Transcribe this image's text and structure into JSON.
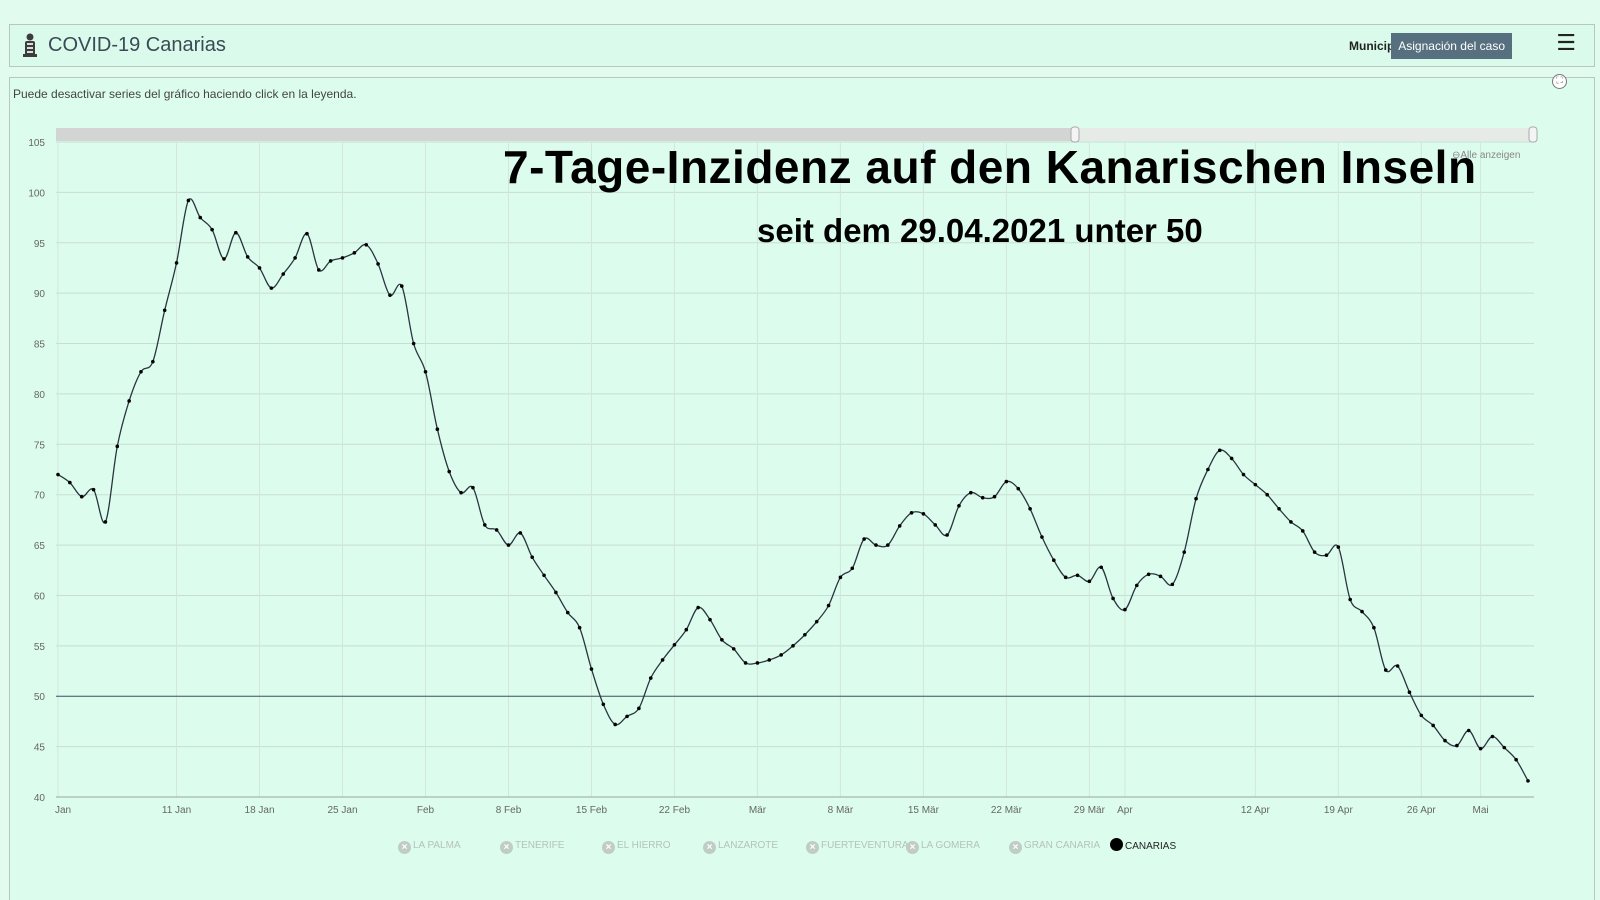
{
  "header": {
    "app_title": "COVID-19 Canarias",
    "municipio_label": "Municipio",
    "asignacion_label": "Asignación del caso",
    "menu_icon": "☰"
  },
  "hint": "Puede desactivar series del gráfico haciendo click en la leyenda.",
  "reset_zoom": "Alle anzeigen",
  "chart_data": {
    "type": "line",
    "title": "7-Tage-Inzidenz auf den Kanarischen Inseln",
    "subtitle": "seit dem 29.04.2021 unter 50",
    "ylim": [
      40,
      105
    ],
    "yticks": [
      40,
      45,
      50,
      55,
      60,
      65,
      70,
      75,
      80,
      85,
      90,
      95,
      100,
      105
    ],
    "reference_line": 50,
    "xticks": [
      {
        "label": "Jan",
        "day": 1
      },
      {
        "label": "11 Jan",
        "day": 11
      },
      {
        "label": "18 Jan",
        "day": 18
      },
      {
        "label": "25 Jan",
        "day": 25
      },
      {
        "label": "Feb",
        "day": 32
      },
      {
        "label": "8 Feb",
        "day": 39
      },
      {
        "label": "15 Feb",
        "day": 46
      },
      {
        "label": "22 Feb",
        "day": 53
      },
      {
        "label": "Mär",
        "day": 60
      },
      {
        "label": "8 Mär",
        "day": 67
      },
      {
        "label": "15 Mär",
        "day": 74
      },
      {
        "label": "22 Mär",
        "day": 81
      },
      {
        "label": "29 Mär",
        "day": 88
      },
      {
        "label": "Apr",
        "day": 91
      },
      {
        "label": "12 Apr",
        "day": 102
      },
      {
        "label": "19 Apr",
        "day": 109
      },
      {
        "label": "26 Apr",
        "day": 116
      },
      {
        "label": "Mai",
        "day": 121
      }
    ],
    "series": [
      {
        "name": "CANARIAS",
        "color": "#000000",
        "start_day": 1,
        "values": [
          72.0,
          71.2,
          69.8,
          70.5,
          67.3,
          74.8,
          79.3,
          82.2,
          83.2,
          88.3,
          93.0,
          99.2,
          97.5,
          96.3,
          93.4,
          96.0,
          93.6,
          92.5,
          90.5,
          91.9,
          93.5,
          95.9,
          92.3,
          93.2,
          93.5,
          94.0,
          94.8,
          92.9,
          89.8,
          90.7,
          85.0,
          82.2,
          76.5,
          72.3,
          70.2,
          70.7,
          67.0,
          66.5,
          65.0,
          66.2,
          63.8,
          62.0,
          60.3,
          58.3,
          56.8,
          52.7,
          49.2,
          47.2,
          48.0,
          48.8,
          51.8,
          53.6,
          55.1,
          56.6,
          58.8,
          57.6,
          55.6,
          54.7,
          53.3,
          53.3,
          53.6,
          54.1,
          55.0,
          56.1,
          57.4,
          59.0,
          61.8,
          62.7,
          65.6,
          65.0,
          65.0,
          66.9,
          68.2,
          68.1,
          67.0,
          66.0,
          68.9,
          70.2,
          69.7,
          69.8,
          71.3,
          70.6,
          68.6,
          65.8,
          63.5,
          61.8,
          62.0,
          61.4,
          62.8,
          59.7,
          58.6,
          61.0,
          62.1,
          61.9,
          61.1,
          64.3,
          69.6,
          72.5,
          74.4,
          73.6,
          72.0,
          71.0,
          70.0,
          68.6,
          67.3,
          66.4,
          64.3,
          64.0,
          64.8,
          59.6,
          58.4,
          56.8,
          52.6,
          53.0,
          50.4,
          48.1,
          47.1,
          45.6,
          45.1,
          46.6,
          44.8,
          46.0,
          44.9,
          43.7,
          41.6
        ]
      }
    ],
    "legend": [
      {
        "label": "LA PALMA",
        "active": false
      },
      {
        "label": "TENERIFE",
        "active": false
      },
      {
        "label": "EL HIERRO",
        "active": false
      },
      {
        "label": "LANZAROTE",
        "active": false
      },
      {
        "label": "FUERTEVENTURA",
        "active": false
      },
      {
        "label": "LA GOMERA",
        "active": false
      },
      {
        "label": "GRAN CANARIA",
        "active": false
      },
      {
        "label": "CANARIAS",
        "active": true
      }
    ]
  }
}
